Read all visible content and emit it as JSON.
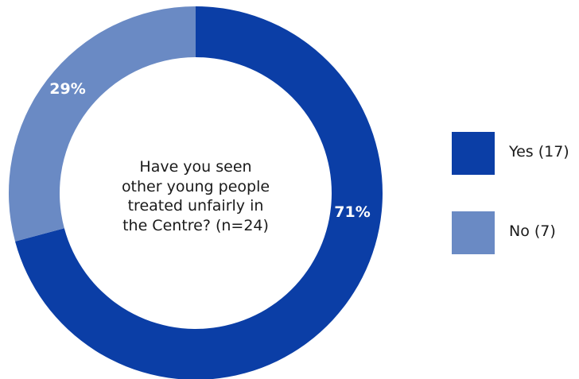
{
  "chart_data": {
    "type": "pie",
    "variant": "donut",
    "center_text": [
      "Have you seen",
      "other young people",
      "treated unfairly in",
      "the Centre? (n=24)"
    ],
    "categories": [
      "Yes (17)",
      "No (7)"
    ],
    "values": [
      17,
      7
    ],
    "percent_labels": [
      "71%",
      "29%"
    ],
    "colors": [
      "#0b3ea6",
      "#6a8ac4"
    ],
    "legend_position": "right"
  }
}
